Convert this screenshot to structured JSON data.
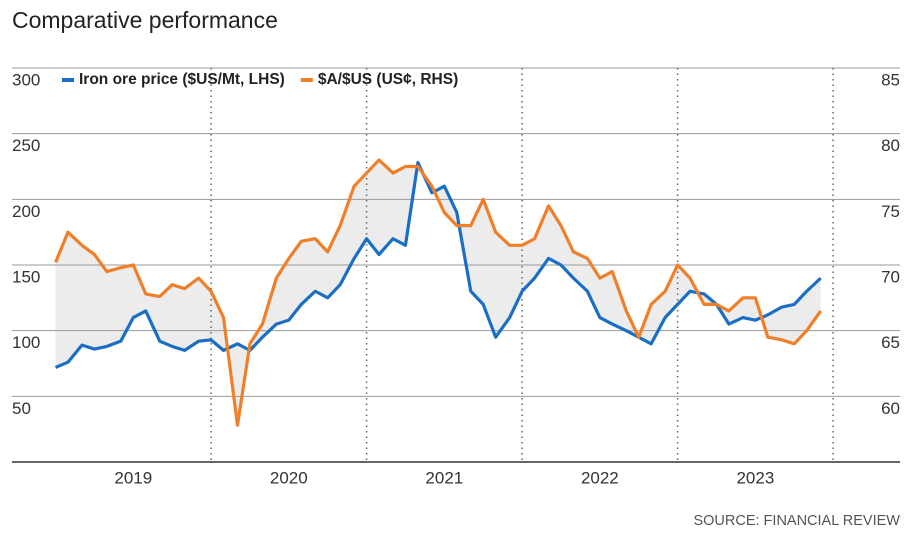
{
  "chart_data": {
    "type": "line",
    "title": "Comparative performance",
    "source": "SOURCE: FINANCIAL REVIEW",
    "x": [
      2019,
      2019.08,
      2019.17,
      2019.25,
      2019.33,
      2019.42,
      2019.5,
      2019.58,
      2019.67,
      2019.75,
      2019.83,
      2019.92,
      2020,
      2020.08,
      2020.17,
      2020.25,
      2020.33,
      2020.42,
      2020.5,
      2020.58,
      2020.67,
      2020.75,
      2020.83,
      2020.92,
      2021,
      2021.08,
      2021.17,
      2021.25,
      2021.33,
      2021.42,
      2021.5,
      2021.58,
      2021.67,
      2021.75,
      2021.83,
      2021.92,
      2022,
      2022.08,
      2022.17,
      2022.25,
      2022.33,
      2022.42,
      2022.5,
      2022.58,
      2022.67,
      2022.75,
      2022.83,
      2022.92,
      2023,
      2023.08,
      2023.17,
      2023.25,
      2023.33,
      2023.42,
      2023.5,
      2023.58,
      2023.67,
      2023.75,
      2023.83,
      2023.92
    ],
    "series": [
      {
        "name": "Iron ore price ($US/Mt, LHS)",
        "color": "#1a6fc4",
        "axis": "y",
        "values": [
          72,
          76,
          89,
          86,
          88,
          92,
          110,
          115,
          92,
          88,
          85,
          92,
          93,
          85,
          90,
          85,
          95,
          105,
          108,
          120,
          130,
          125,
          135,
          155,
          170,
          158,
          170,
          165,
          228,
          205,
          210,
          190,
          130,
          120,
          95,
          110,
          130,
          140,
          155,
          150,
          140,
          130,
          110,
          105,
          100,
          95,
          90,
          110,
          120,
          130,
          128,
          120,
          105,
          110,
          108,
          112,
          118,
          120,
          130,
          140
        ]
      },
      {
        "name": "$A/$US (US¢, RHS)",
        "color": "#f07f2a",
        "axis": "y2",
        "values": [
          70.2,
          72.5,
          71.5,
          70.8,
          69.5,
          69.8,
          70,
          67.8,
          67.6,
          68.5,
          68.2,
          69,
          68,
          66,
          57.8,
          64,
          65.5,
          69,
          70.5,
          71.8,
          72,
          71,
          73,
          76,
          77,
          78,
          77,
          77.5,
          77.5,
          76,
          74,
          73,
          73,
          75,
          72.5,
          71.5,
          71.5,
          72,
          74.5,
          73,
          71,
          70.5,
          69,
          69.5,
          66.5,
          64.5,
          67,
          68,
          70,
          69,
          67,
          67,
          66.5,
          67.5,
          67.5,
          64.5,
          64.3,
          64,
          65,
          66.5
        ]
      }
    ],
    "xlim": [
      2018.72,
      2024.43
    ],
    "xticks": [
      {
        "value": 2019.5,
        "label": "2019"
      },
      {
        "value": 2020.5,
        "label": "2020"
      },
      {
        "value": 2021.5,
        "label": "2021"
      },
      {
        "value": 2022.5,
        "label": "2022"
      },
      {
        "value": 2023.5,
        "label": "2023"
      }
    ],
    "year_dividers": [
      2020,
      2021,
      2022,
      2023,
      2024
    ],
    "ylim": [
      0,
      300
    ],
    "yticks": [
      50,
      100,
      150,
      200,
      250,
      300
    ],
    "y2lim": [
      55,
      85
    ],
    "y2ticks": [
      60,
      65,
      70,
      75,
      80,
      85
    ],
    "grid": true,
    "shade_between": true,
    "shade_color": "#ececec",
    "legend": "top-left"
  }
}
